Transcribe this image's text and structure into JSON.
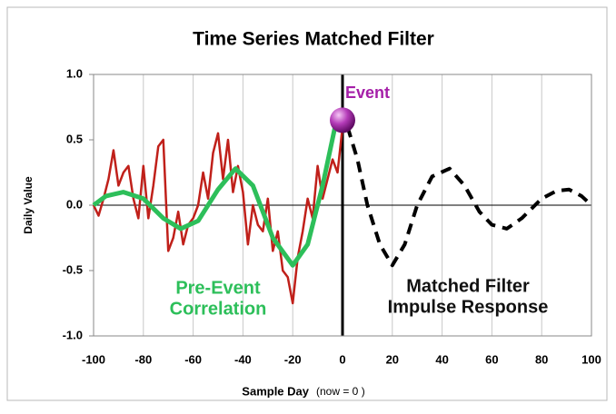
{
  "chart_data": {
    "type": "line",
    "title": "Time Series Matched Filter",
    "xlabel": "Sample Day",
    "xlabel_note": "(now = 0 )",
    "ylabel": "Daily Value",
    "xlim": [
      -100,
      100
    ],
    "ylim": [
      -1,
      1
    ],
    "xticks": [
      -100,
      -80,
      -60,
      -40,
      -20,
      0,
      20,
      40,
      60,
      80,
      100
    ],
    "yticks": [
      {
        "value": -1,
        "label": "-1.0"
      },
      -0.5,
      {
        "value": 0,
        "label": "0.0"
      },
      0.5,
      {
        "value": 1,
        "label": "1.0"
      }
    ],
    "grid": true,
    "series": [
      {
        "color": "#c0201a",
        "dash": false,
        "width": 2.5,
        "x": [
          -100,
          -98,
          -96,
          -94,
          -92,
          -90,
          -88,
          -86,
          -84,
          -82,
          -80,
          -78,
          -76,
          -74,
          -72,
          -70,
          -68,
          -66,
          -64,
          -62,
          -60,
          -58,
          -56,
          -54,
          -52,
          -50,
          -48,
          -46,
          -44,
          -42,
          -40,
          -38,
          -36,
          -34,
          -32,
          -30,
          -28,
          -26,
          -24,
          -22,
          -20,
          -18,
          -16,
          -14,
          -12,
          -10,
          -8,
          -6,
          -4,
          -2,
          0
        ],
        "values": [
          0.0,
          -0.08,
          0.05,
          0.2,
          0.42,
          0.15,
          0.25,
          0.3,
          0.05,
          -0.1,
          0.3,
          -0.1,
          0.15,
          0.45,
          0.5,
          -0.35,
          -0.25,
          -0.05,
          -0.3,
          -0.15,
          -0.1,
          0.0,
          0.25,
          0.05,
          0.4,
          0.55,
          0.2,
          0.5,
          0.1,
          0.3,
          0.1,
          -0.3,
          0.0,
          -0.15,
          -0.2,
          0.05,
          -0.35,
          -0.2,
          -0.5,
          -0.55,
          -0.75,
          -0.4,
          -0.2,
          0.05,
          -0.1,
          0.3,
          0.05,
          0.2,
          0.35,
          0.25,
          0.6
        ]
      },
      {
        "color": "#2dbf5a",
        "dash": false,
        "width": 5,
        "x": [
          -100,
          -95,
          -88,
          -80,
          -72,
          -65,
          -58,
          -50,
          -43,
          -36,
          -28,
          -20,
          -14,
          -8,
          -3
        ],
        "values": [
          0.0,
          0.07,
          0.1,
          0.05,
          -0.1,
          -0.18,
          -0.12,
          0.12,
          0.28,
          0.15,
          -0.25,
          -0.46,
          -0.3,
          0.15,
          0.6
        ]
      },
      {
        "color": "#000000",
        "dash": true,
        "width": 4,
        "x": [
          2,
          6,
          10,
          15,
          20,
          25,
          30,
          36,
          43,
          49,
          55,
          60,
          66,
          72,
          80,
          86,
          91,
          96,
          100
        ],
        "values": [
          0.6,
          0.35,
          0.0,
          -0.3,
          -0.46,
          -0.3,
          0.0,
          0.22,
          0.28,
          0.15,
          -0.05,
          -0.15,
          -0.18,
          -0.1,
          0.05,
          0.11,
          0.12,
          0.07,
          0.0
        ]
      }
    ],
    "event": {
      "label": "Event",
      "x": 0,
      "y": 0.65,
      "color": "#a51fa8"
    },
    "annotations": [
      {
        "text": [
          "Pre-Event",
          "Correlation"
        ],
        "color": "#2dbf5a"
      },
      {
        "text": [
          "Matched Filter",
          "Impulse Response"
        ],
        "color": "#111111"
      }
    ]
  }
}
